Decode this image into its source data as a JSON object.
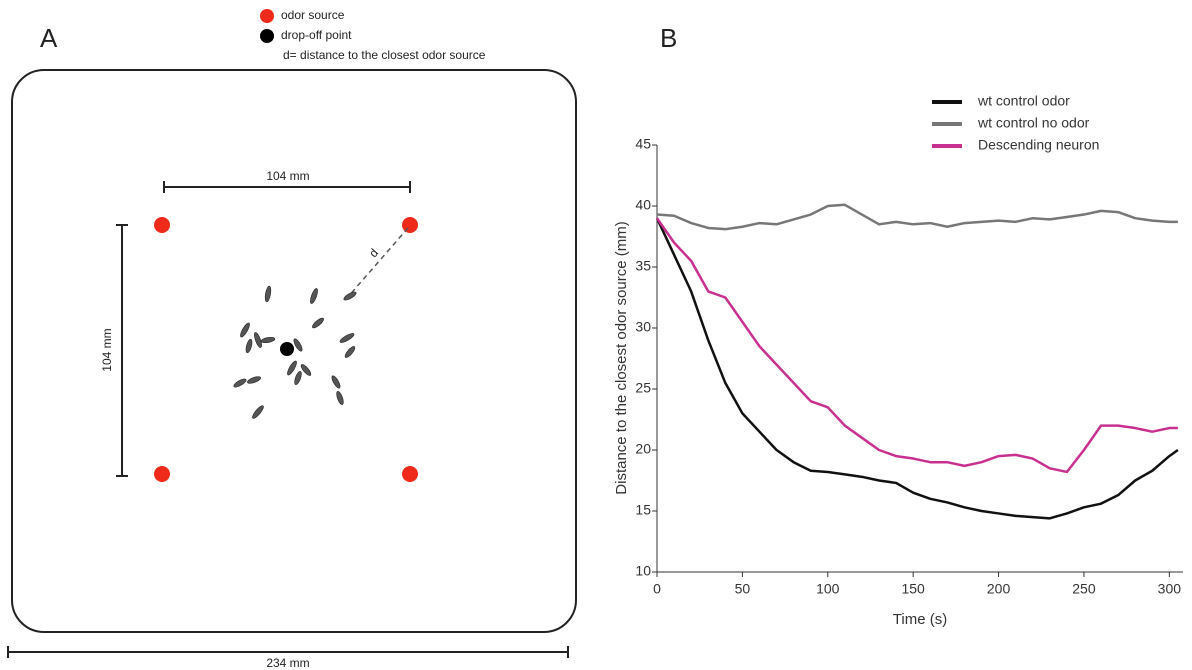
{
  "panel_a": {
    "label": "A",
    "legend": [
      {
        "label": "odor source",
        "color": "#ee2a1a"
      },
      {
        "label": "drop-off point",
        "color": "#000000"
      }
    ],
    "note": "d= distance to the closest odor source",
    "width_label": "104 mm",
    "height_label": "104 mm",
    "arena_label": "234 mm",
    "distance_label": "d"
  },
  "panel_b_label": "B",
  "chart_data": {
    "type": "line",
    "x_label": "Time (s)",
    "y_label": "Distance to the closest odor source (mm)",
    "x": [
      0,
      10,
      20,
      30,
      40,
      50,
      60,
      70,
      80,
      90,
      100,
      110,
      120,
      130,
      140,
      150,
      160,
      170,
      180,
      190,
      200,
      210,
      220,
      230,
      240,
      250,
      260,
      270,
      280,
      290,
      300,
      305
    ],
    "series": [
      {
        "name": "wt control odor",
        "color": "#111111",
        "values": [
          39,
          36,
          33,
          29,
          25.5,
          23,
          21.5,
          20,
          19,
          18.3,
          18.2,
          18,
          17.8,
          17.5,
          17.3,
          16.5,
          16,
          15.7,
          15.3,
          15,
          14.8,
          14.6,
          14.5,
          14.4,
          14.8,
          15.3,
          15.6,
          16.3,
          17.5,
          18.3,
          19.5,
          20
        ]
      },
      {
        "name": "wt control no odor",
        "color": "#777777",
        "values": [
          39.3,
          39.2,
          38.6,
          38.2,
          38.1,
          38.3,
          38.6,
          38.5,
          38.9,
          39.3,
          40,
          40.1,
          39.3,
          38.5,
          38.7,
          38.5,
          38.6,
          38.3,
          38.6,
          38.7,
          38.8,
          38.7,
          39,
          38.9,
          39.1,
          39.3,
          39.6,
          39.5,
          39,
          38.8,
          38.7,
          38.7
        ]
      },
      {
        "name": "Descending neuron",
        "color": "#c8308f",
        "values": [
          39,
          37,
          35.5,
          33,
          32.5,
          30.5,
          28.5,
          27,
          25.5,
          24,
          23.5,
          22,
          21,
          20,
          19.5,
          19.3,
          19,
          19,
          18.7,
          19,
          19.5,
          19.6,
          19.3,
          18.5,
          18.2,
          20,
          22,
          22,
          21.8,
          21.5,
          21.8,
          21.8
        ]
      }
    ],
    "xlim": [
      0,
      308
    ],
    "ylim": [
      10,
      45
    ],
    "xticks": [
      0,
      50,
      100,
      150,
      200,
      250,
      300
    ],
    "yticks": [
      10,
      15,
      20,
      25,
      30,
      35,
      40,
      45
    ]
  }
}
